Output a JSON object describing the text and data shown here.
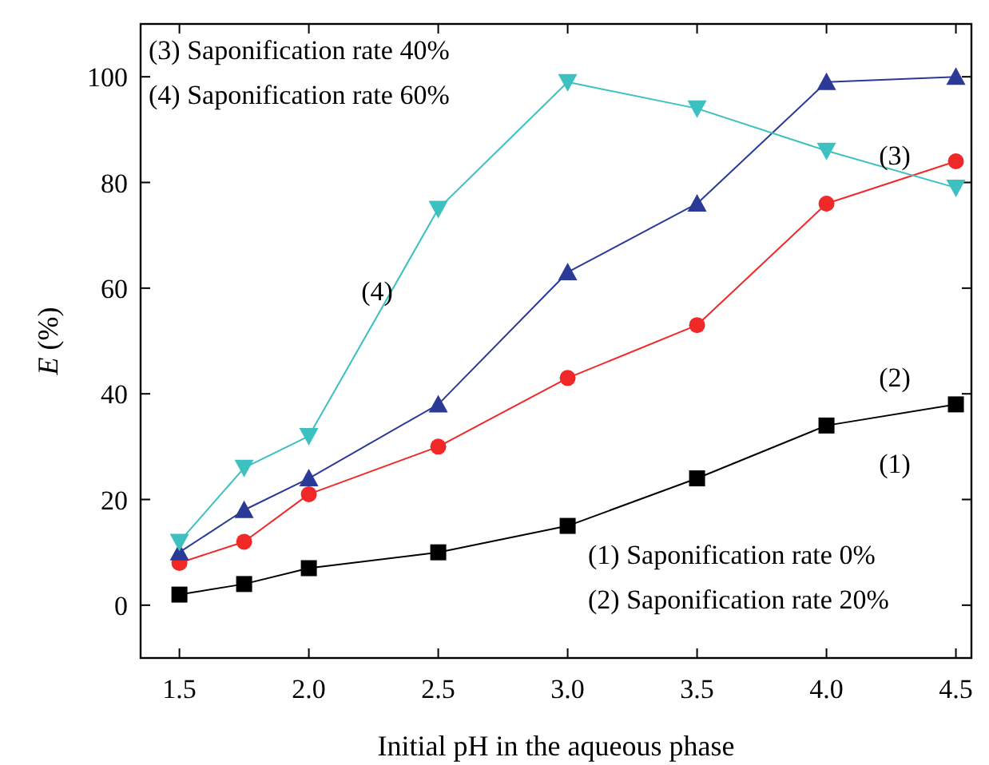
{
  "chart_data": {
    "type": "line",
    "xlabel": "Initial pH in the aqueous phase",
    "ylabel": "E (%)",
    "x": [
      1.5,
      1.75,
      2.0,
      2.5,
      3.0,
      3.5,
      4.0,
      4.5
    ],
    "series": [
      {
        "color": "#000000",
        "marker": "square",
        "values": [
          2,
          4,
          7,
          10,
          15,
          24,
          34,
          38
        ]
      },
      {
        "color": "#f02828",
        "marker": "circle",
        "values": [
          8,
          12,
          21,
          30,
          43,
          53,
          76,
          84
        ]
      },
      {
        "color": "#2a3a96",
        "marker": "triangle",
        "values": [
          10,
          18,
          24,
          38,
          63,
          76,
          99,
          100
        ]
      },
      {
        "color": "#3cc0c0",
        "marker": "triangle-down",
        "values": [
          12,
          26,
          32,
          75,
          99,
          94,
          86,
          79
        ]
      }
    ],
    "xlim": [
      1.35,
      4.56
    ],
    "ylim": [
      -10,
      110
    ],
    "xticks": [
      1.5,
      {
        "value": 2,
        "label": "2.0"
      },
      2.5,
      {
        "value": 3,
        "label": "3.0"
      },
      3.5,
      {
        "value": 4,
        "label": "4.0"
      },
      4.5
    ],
    "yticks": [
      0,
      20,
      40,
      60,
      80,
      100
    ],
    "grid": false,
    "annotations": [
      "(3) Saponification rate 40%",
      "(4) Saponification rate 60%",
      "(1) Saponification rate 0%",
      "(2) Saponification rate 20%",
      "(4)",
      "(3)",
      "(2)",
      "(1)"
    ]
  }
}
